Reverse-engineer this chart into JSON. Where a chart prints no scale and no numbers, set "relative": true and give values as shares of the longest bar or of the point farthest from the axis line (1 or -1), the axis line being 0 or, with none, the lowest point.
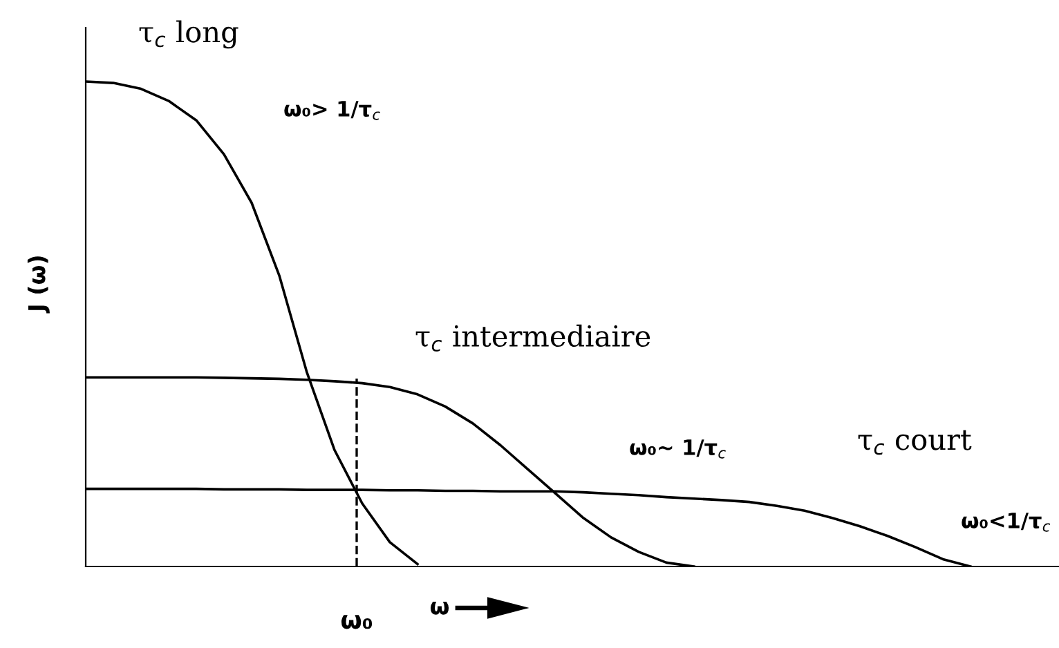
{
  "chart_data": {
    "type": "line",
    "relative": true,
    "ylabel": "J (ω)",
    "xlabel": "ω",
    "categories": [
      null,
      null,
      null,
      null,
      null,
      null,
      null,
      null,
      null,
      null,
      null,
      null,
      null,
      null,
      null,
      null,
      null,
      null,
      null,
      null,
      null,
      null,
      null,
      null,
      null,
      null,
      null,
      null,
      null,
      null,
      null,
      null,
      null,
      null,
      null,
      null
    ],
    "series": [
      {
        "name": "τ$_{c}$ long",
        "color": "#000000",
        "values": [
          1.0,
          0.997,
          0.985,
          0.96,
          0.92,
          0.85,
          0.75,
          0.6,
          0.4,
          0.24,
          0.13,
          0.05,
          0.005,
          null,
          null,
          null,
          null,
          null,
          null,
          null,
          null,
          null,
          null,
          null,
          null,
          null,
          null,
          null,
          null,
          null,
          null,
          null,
          null,
          null,
          null,
          null
        ]
      },
      {
        "name": "τ$_{c}$ intermediaire",
        "color": "#000000",
        "values": [
          0.39,
          0.39,
          0.39,
          0.39,
          0.39,
          0.389,
          0.388,
          0.387,
          0.385,
          0.382,
          0.378,
          0.37,
          0.355,
          0.33,
          0.295,
          0.25,
          0.2,
          0.15,
          0.1,
          0.06,
          0.03,
          0.008,
          0,
          null,
          null,
          null,
          null,
          null,
          null,
          null,
          null,
          null,
          null,
          null,
          null,
          null
        ]
      },
      {
        "name": "τ$_{c}$ court",
        "color": "#000000",
        "values": [
          0.16,
          0.16,
          0.16,
          0.16,
          0.16,
          0.159,
          0.159,
          0.159,
          0.158,
          0.158,
          0.158,
          0.157,
          0.157,
          0.156,
          0.156,
          0.155,
          0.155,
          0.155,
          0.153,
          0.15,
          0.147,
          0.143,
          0.14,
          0.137,
          0.133,
          0.125,
          0.115,
          0.1,
          0.083,
          0.063,
          0.04,
          0.015,
          0,
          null,
          null,
          null
        ]
      }
    ],
    "annotations": [
      "ω₀> 1/τ$_{c}$",
      "ω₀~ 1/τ$_{c}$",
      "ω₀<1/τ$_{c}$",
      "ω₀"
    ],
    "grid": false,
    "legend": false,
    "marker": "none",
    "line_style": "solid"
  }
}
